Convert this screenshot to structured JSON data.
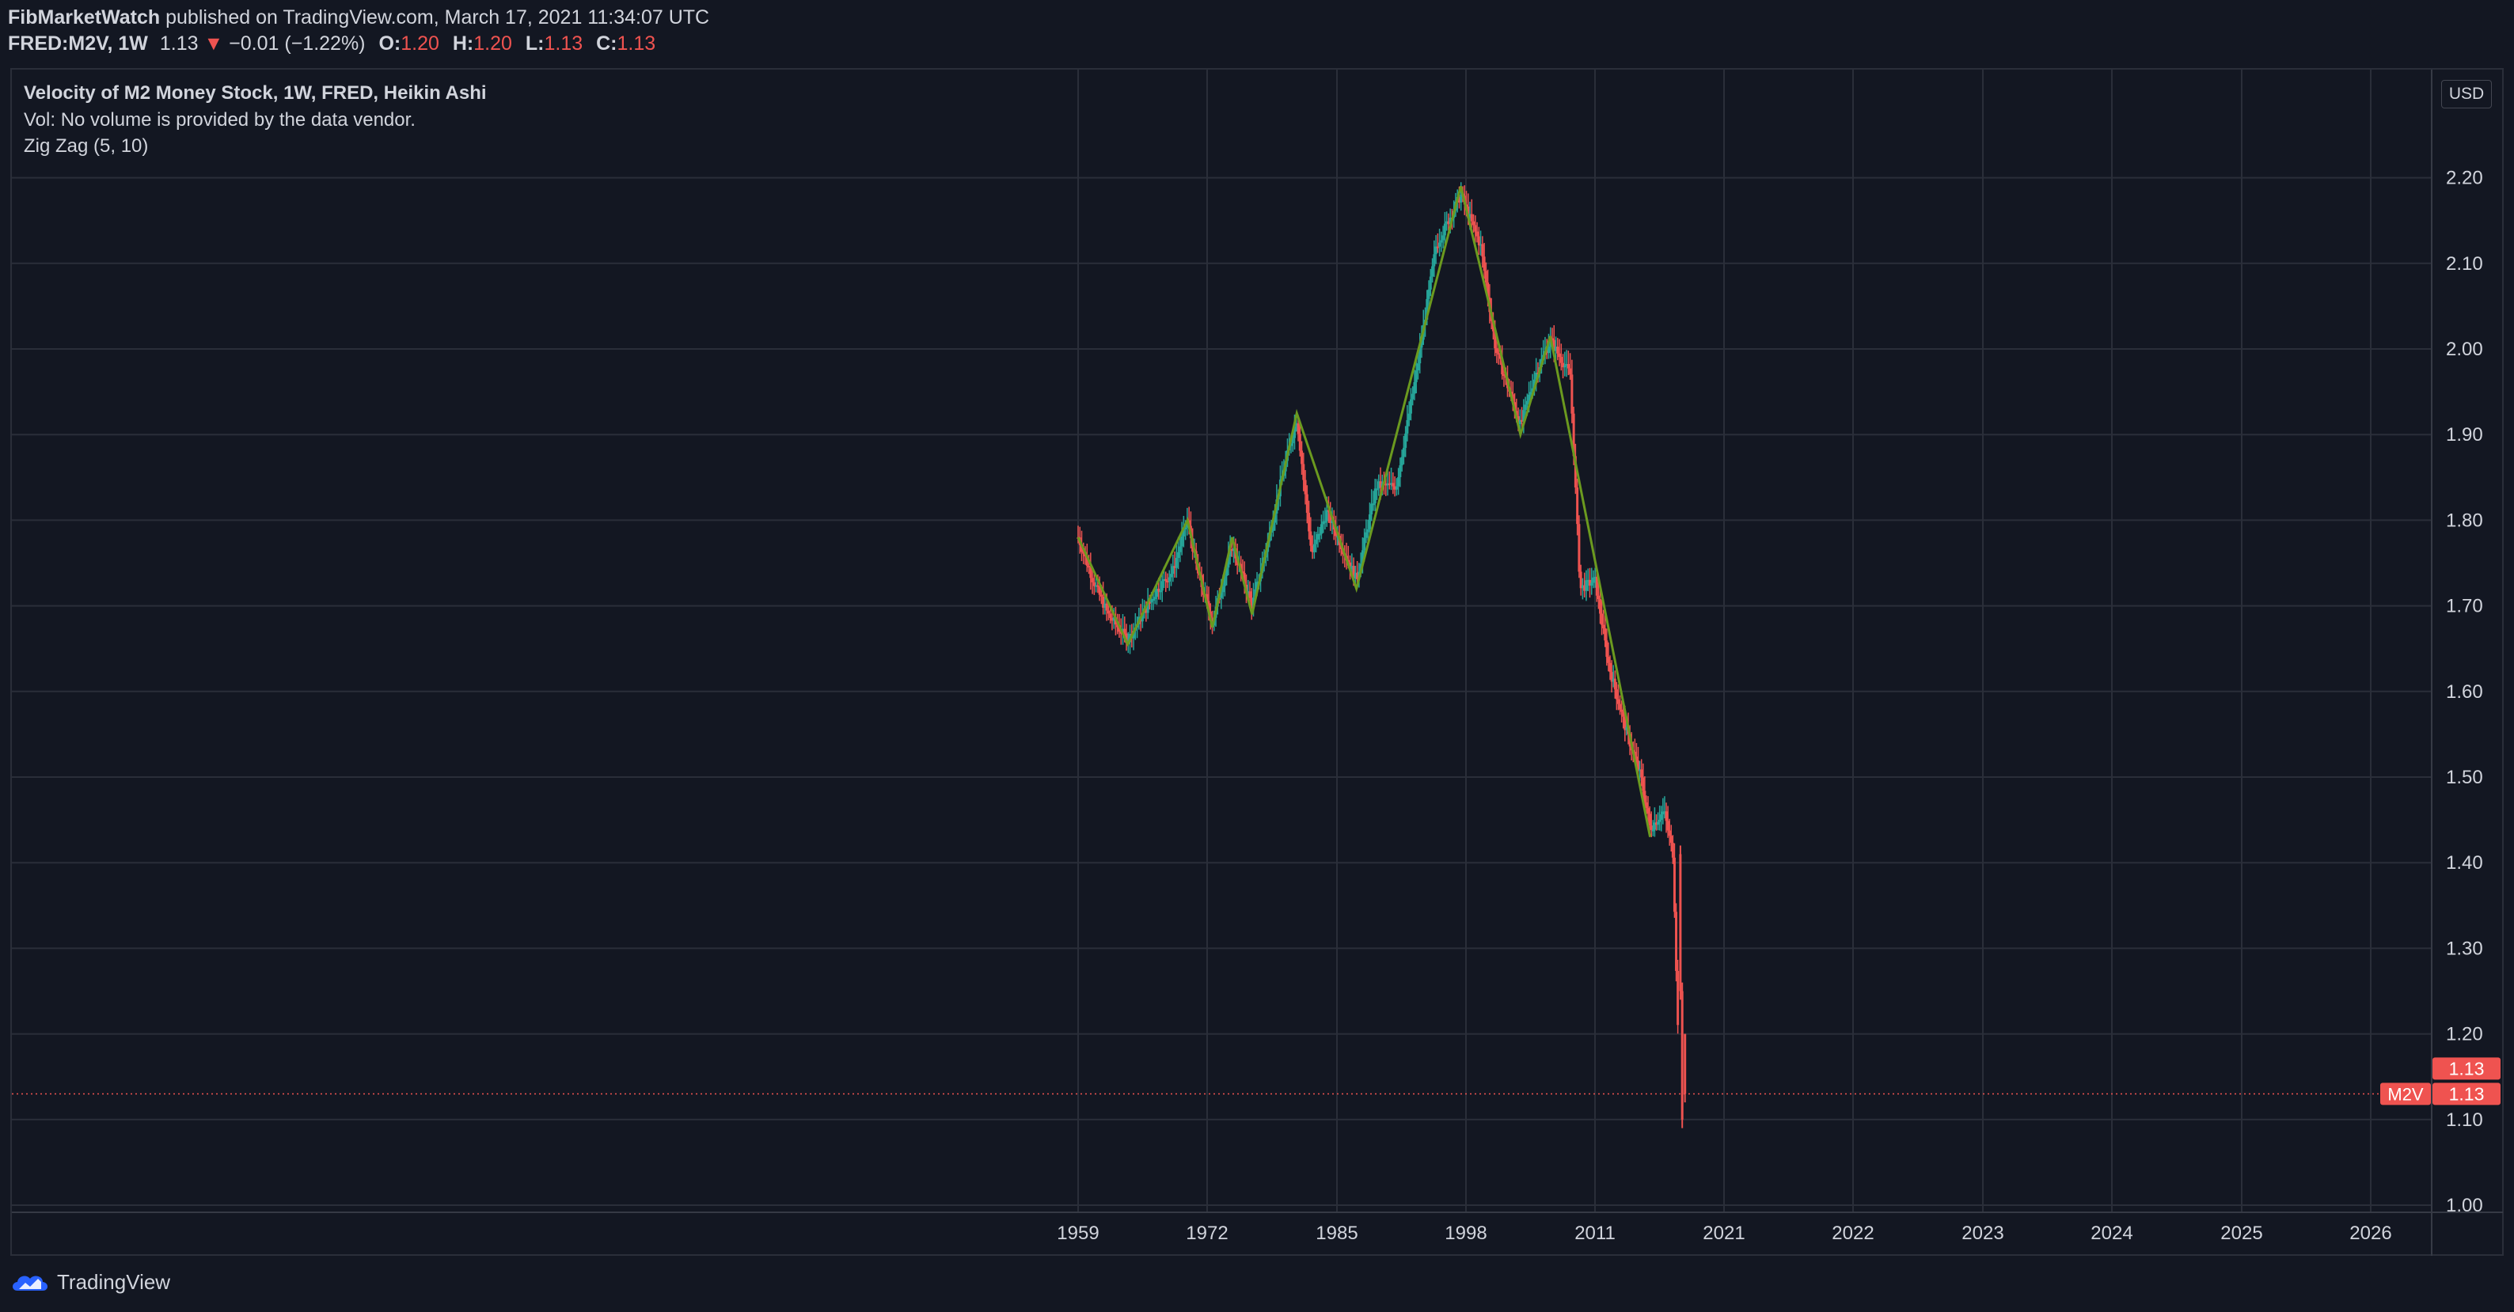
{
  "header": {
    "author": "FibMarketWatch",
    "published_text": " published on TradingView.com, March 17, 2021 11:34:07 UTC",
    "symbol": "FRED:M2V, 1W",
    "last": "1.13",
    "change": "−0.01 (−1.22%)",
    "o_label": "O:",
    "o_value": "1.20",
    "h_label": "H:",
    "h_value": "1.20",
    "l_label": "L:",
    "l_value": "1.13",
    "c_label": "C:",
    "c_value": "1.13"
  },
  "legend": {
    "title": "Velocity of M2 Money Stock, 1W, FRED, Heikin Ashi",
    "volume": "Vol: No volume is provided by the data vendor.",
    "indicator": "Zig Zag (5, 10)"
  },
  "currency_button": "USD",
  "footer": {
    "brand": "TradingView"
  },
  "colors": {
    "background": "#131722",
    "grid": "#2a2e39",
    "up": "#26a69a",
    "down": "#ef5350",
    "zigzag": "#6b9a1f",
    "text": "#d1d4dc"
  },
  "chart_data": {
    "type": "candlestick",
    "subtype": "heikin-ashi",
    "y_label_ticks": [
      "1.00",
      "1.10",
      "1.20",
      "1.30",
      "1.40",
      "1.50",
      "1.60",
      "1.70",
      "1.80",
      "1.90",
      "2.00",
      "2.10",
      "2.20"
    ],
    "ylim": [
      1.0,
      2.2
    ],
    "x_tick_labels": [
      "1959",
      "1972",
      "1985",
      "1998",
      "2011",
      "2021",
      "2022",
      "2023",
      "2024",
      "2025",
      "2026"
    ],
    "zigzag": [
      {
        "x": 1959.0,
        "y": 1.78
      },
      {
        "x": 1964.0,
        "y": 1.655
      },
      {
        "x": 1970.0,
        "y": 1.8
      },
      {
        "x": 1972.5,
        "y": 1.675
      },
      {
        "x": 1974.5,
        "y": 1.78
      },
      {
        "x": 1976.5,
        "y": 1.69
      },
      {
        "x": 1981.0,
        "y": 1.925
      },
      {
        "x": 1987.0,
        "y": 1.72
      },
      {
        "x": 1997.5,
        "y": 2.19
      },
      {
        "x": 2003.5,
        "y": 1.9
      },
      {
        "x": 2006.5,
        "y": 2.015
      },
      {
        "x": 2017.0,
        "y": 1.43
      }
    ],
    "price_series": [
      {
        "x": 1959.0,
        "y": 1.78
      },
      {
        "x": 1960.5,
        "y": 1.73
      },
      {
        "x": 1962.0,
        "y": 1.69
      },
      {
        "x": 1964.0,
        "y": 1.66
      },
      {
        "x": 1965.5,
        "y": 1.69
      },
      {
        "x": 1967.0,
        "y": 1.72
      },
      {
        "x": 1968.5,
        "y": 1.74
      },
      {
        "x": 1970.0,
        "y": 1.8
      },
      {
        "x": 1971.0,
        "y": 1.74
      },
      {
        "x": 1972.5,
        "y": 1.68
      },
      {
        "x": 1974.5,
        "y": 1.77
      },
      {
        "x": 1976.5,
        "y": 1.7
      },
      {
        "x": 1978.0,
        "y": 1.77
      },
      {
        "x": 1979.5,
        "y": 1.85
      },
      {
        "x": 1981.0,
        "y": 1.92
      },
      {
        "x": 1982.5,
        "y": 1.76
      },
      {
        "x": 1984.0,
        "y": 1.81
      },
      {
        "x": 1987.0,
        "y": 1.73
      },
      {
        "x": 1989.0,
        "y": 1.84
      },
      {
        "x": 1991.0,
        "y": 1.84
      },
      {
        "x": 1993.0,
        "y": 1.97
      },
      {
        "x": 1995.0,
        "y": 2.12
      },
      {
        "x": 1997.5,
        "y": 2.18
      },
      {
        "x": 1999.5,
        "y": 2.12
      },
      {
        "x": 2001.0,
        "y": 2.0
      },
      {
        "x": 2003.5,
        "y": 1.91
      },
      {
        "x": 2005.0,
        "y": 1.97
      },
      {
        "x": 2006.5,
        "y": 2.01
      },
      {
        "x": 2008.5,
        "y": 1.97
      },
      {
        "x": 2009.5,
        "y": 1.72
      },
      {
        "x": 2011.0,
        "y": 1.73
      },
      {
        "x": 2012.5,
        "y": 1.63
      },
      {
        "x": 2014.5,
        "y": 1.55
      },
      {
        "x": 2016.0,
        "y": 1.5
      },
      {
        "x": 2017.0,
        "y": 1.44
      },
      {
        "x": 2018.5,
        "y": 1.46
      },
      {
        "x": 2019.5,
        "y": 1.41
      },
      {
        "x": 2020.3,
        "y": 1.1
      },
      {
        "x": 2021.0,
        "y": 1.13
      }
    ],
    "last_price": 1.13,
    "price_labels": [
      {
        "symbol": "",
        "value": "1.13"
      },
      {
        "symbol": "M2V",
        "value": "1.13"
      }
    ]
  }
}
